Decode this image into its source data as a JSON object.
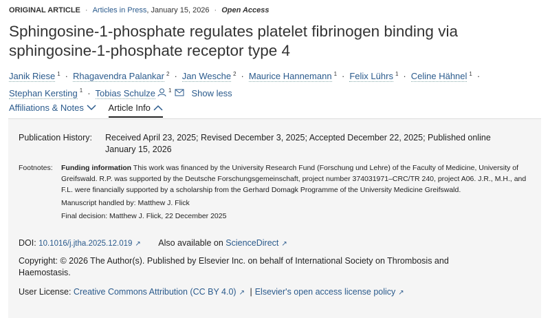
{
  "header": {
    "type": "ORIGINAL ARTICLE",
    "journal_link": "Articles in Press",
    "date": ", January 15, 2026",
    "access": "Open Access"
  },
  "title": "Sphingosine-1-phosphate regulates platelet fibrinogen binding via sphingosine-1-phosphate receptor type 4",
  "authors": [
    {
      "name": "Janik Riese",
      "aff": "1"
    },
    {
      "name": "Rhagavendra Palankar",
      "aff": "2"
    },
    {
      "name": "Jan Wesche",
      "aff": "2"
    },
    {
      "name": "Maurice Hannemann",
      "aff": "1"
    },
    {
      "name": "Felix Lührs",
      "aff": "1"
    },
    {
      "name": "Celine Hähnel",
      "aff": "1"
    },
    {
      "name": "Stephan Kersting",
      "aff": "1"
    },
    {
      "name": "Tobias Schulze",
      "aff": "1"
    }
  ],
  "show_less": "Show less",
  "tabs": [
    {
      "label": "Affiliations & Notes",
      "icon": "chevron-down"
    },
    {
      "label": "Article Info",
      "icon": "chevron-up",
      "active": true
    }
  ],
  "info": {
    "pub_label": "Publication History:",
    "pub_value": "Received April 23, 2025; Revised December 3, 2025; Accepted December 22, 2025; Published online",
    "pub_value2": "January 15, 2026",
    "fn_label": "Footnotes:",
    "fn_bold": "Funding information",
    "fn_text": " This work was financed by the University Research Fund (Forschung und Lehre) of the Faculty of Medicine, University of Greifswald. R.P. was supported by the Deutsche Forschungsgemeinschaft, project number 374031971–CRC/TR 240, project A06. J.R., M.H., and F.L. were financially supported by a scholarship from the Gerhard Domagk Programme of the University Medicine Greifswald.",
    "handled": "Manuscript handled by: Matthew J. Flick",
    "decision": "Final decision: Matthew J. Flick, 22 December 2025",
    "doi_label": "DOI:",
    "doi": "10.1016/j.jtha.2025.12.019",
    "also": "Also available on",
    "sd": "ScienceDirect",
    "copyright": "Copyright: © 2026 The Author(s). Published by Elsevier Inc. on behalf of International Society on Thrombosis and Haemostasis.",
    "license_label": "User License:",
    "license": "Creative Commons Attribution (CC BY 4.0)",
    "policy": "Elsevier's open access license policy"
  }
}
